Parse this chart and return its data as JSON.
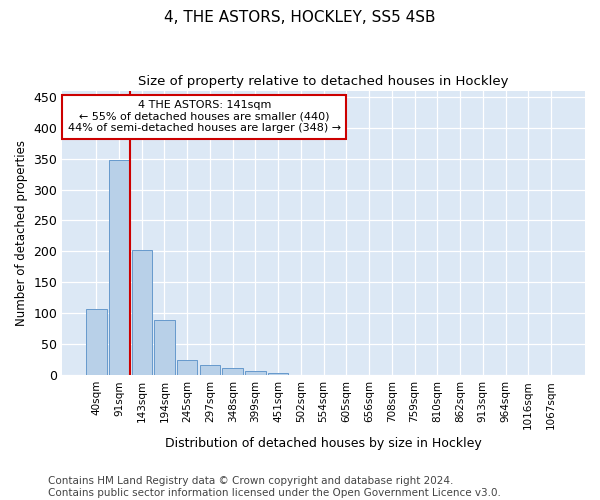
{
  "title": "4, THE ASTORS, HOCKLEY, SS5 4SB",
  "subtitle": "Size of property relative to detached houses in Hockley",
  "xlabel": "Distribution of detached houses by size in Hockley",
  "ylabel": "Number of detached properties",
  "categories": [
    "40sqm",
    "91sqm",
    "143sqm",
    "194sqm",
    "245sqm",
    "297sqm",
    "348sqm",
    "399sqm",
    "451sqm",
    "502sqm",
    "554sqm",
    "605sqm",
    "656sqm",
    "708sqm",
    "759sqm",
    "810sqm",
    "862sqm",
    "913sqm",
    "964sqm",
    "1016sqm",
    "1067sqm"
  ],
  "values": [
    107,
    348,
    203,
    89,
    24,
    16,
    11,
    7,
    4,
    0,
    0,
    0,
    0,
    0,
    0,
    0,
    0,
    0,
    0,
    0,
    1
  ],
  "bar_color": "#b8d0e8",
  "bar_edge_color": "#6699cc",
  "vline_x_index": 2,
  "vline_color": "#cc0000",
  "annotation_text": "4 THE ASTORS: 141sqm\n← 55% of detached houses are smaller (440)\n44% of semi-detached houses are larger (348) →",
  "annotation_box_color": "#cc0000",
  "ylim": [
    0,
    460
  ],
  "yticks": [
    0,
    50,
    100,
    150,
    200,
    250,
    300,
    350,
    400,
    450
  ],
  "background_color": "#dce8f5",
  "grid_color": "#ffffff",
  "footer_line1": "Contains HM Land Registry data © Crown copyright and database right 2024.",
  "footer_line2": "Contains public sector information licensed under the Open Government Licence v3.0.",
  "title_fontsize": 11,
  "subtitle_fontsize": 9.5,
  "footer_fontsize": 7.5,
  "annot_fontsize": 8,
  "ylabel_fontsize": 8.5,
  "xlabel_fontsize": 9
}
